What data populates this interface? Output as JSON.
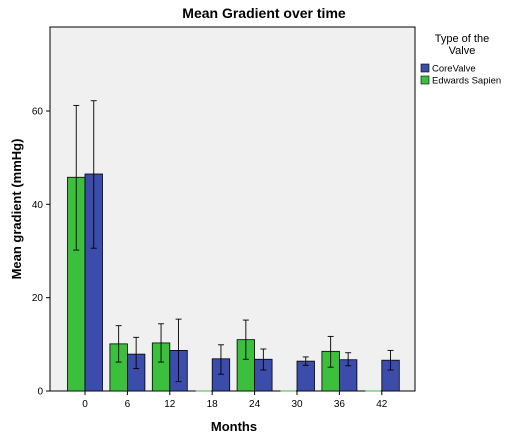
{
  "chart_data": {
    "type": "bar",
    "title": "Mean Gradient over time",
    "xlabel": "Months",
    "ylabel": "Mean gradient (mmHg)",
    "categories": [
      "0",
      "6",
      "12",
      "18",
      "24",
      "30",
      "36",
      "42"
    ],
    "ylim": [
      0,
      78
    ],
    "yticks": [
      0,
      20,
      40,
      60
    ],
    "grid": false,
    "legend": {
      "title_lines": [
        "Type of the",
        "Valve"
      ],
      "placement": "right",
      "entries": [
        {
          "name": "CoreValve",
          "color": "#3b4cab"
        },
        {
          "name": "Edwards Sapien",
          "color": "#3cbf3c"
        }
      ]
    },
    "series": [
      {
        "name": "Edwards Sapien",
        "color": "#3cbf3c",
        "values": [
          45.8,
          10.1,
          10.3,
          null,
          11.0,
          null,
          8.5,
          null
        ],
        "error_low": [
          30.2,
          6.2,
          6.2,
          null,
          6.8,
          null,
          5.1,
          null
        ],
        "error_high": [
          61.2,
          14.0,
          14.4,
          null,
          15.2,
          null,
          11.7,
          null
        ]
      },
      {
        "name": "CoreValve",
        "color": "#3b4cab",
        "values": [
          46.5,
          7.9,
          8.7,
          6.9,
          6.8,
          6.4,
          6.7,
          6.6
        ],
        "error_low": [
          30.6,
          4.8,
          2.0,
          3.6,
          4.5,
          5.5,
          5.4,
          4.5
        ],
        "error_high": [
          62.2,
          11.5,
          15.4,
          9.9,
          9.0,
          7.3,
          8.2,
          8.7
        ]
      }
    ]
  }
}
